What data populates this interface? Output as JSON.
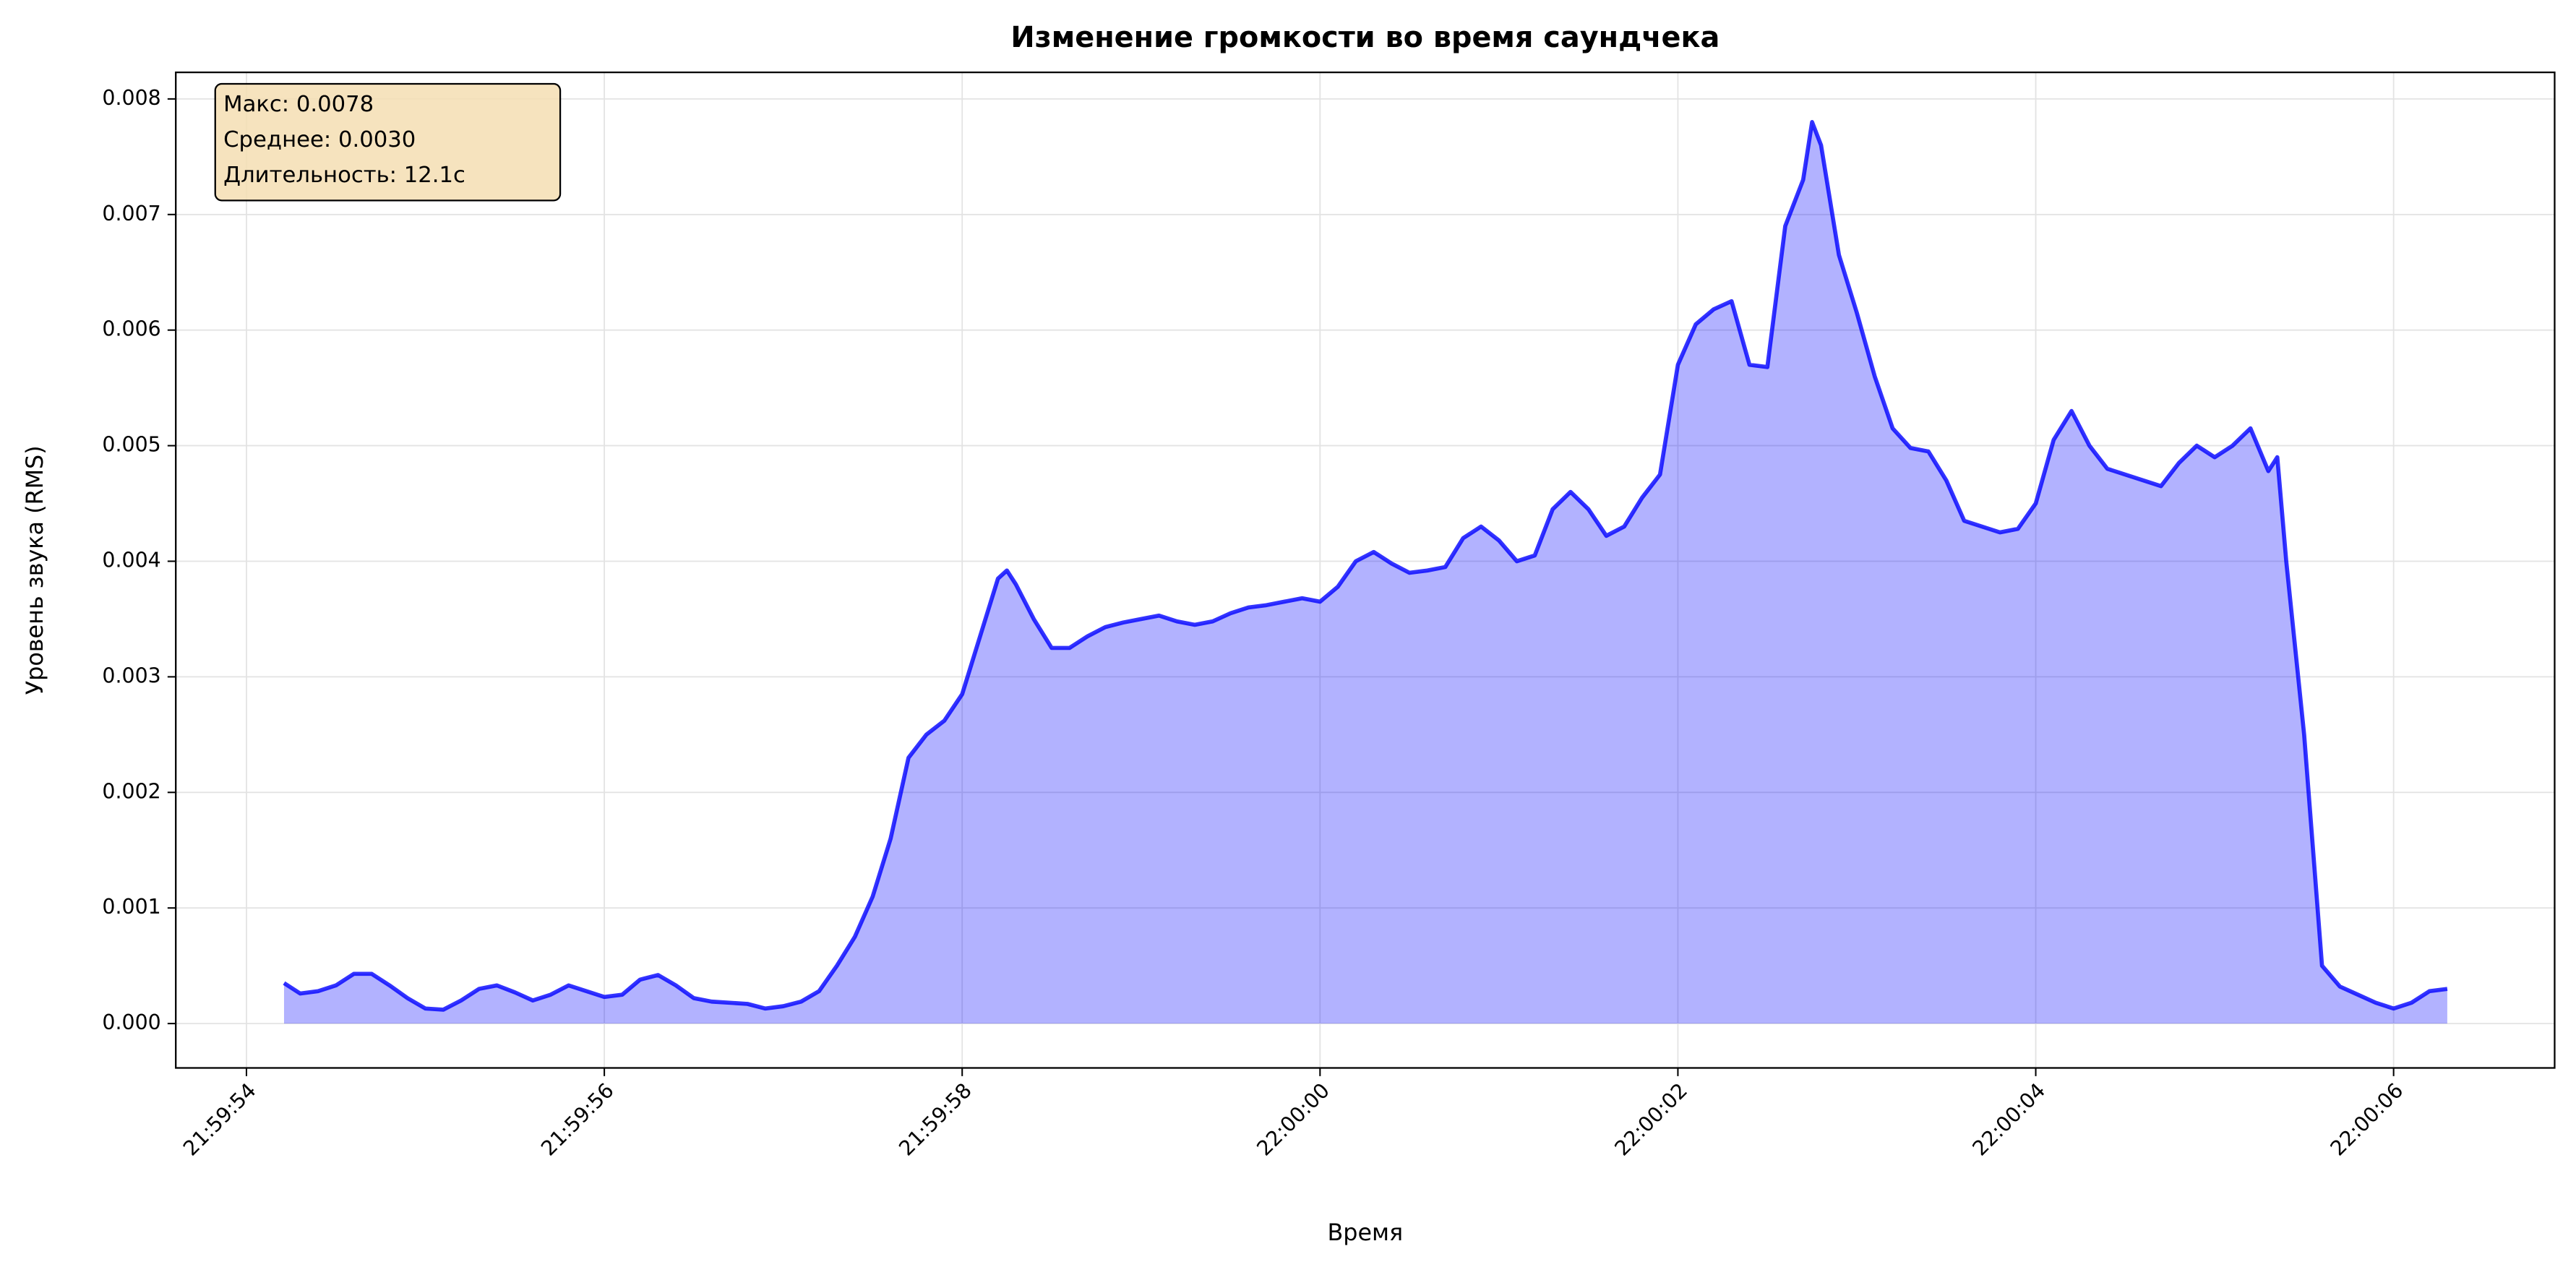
{
  "chart_data": {
    "type": "area_line",
    "title": "Изменение громкости во время саундчека",
    "x_label": "Время",
    "y_label": "Уровень звука (RMS)",
    "annotation": [
      "Макс: 0.0078",
      "Среднее: 0.0030",
      "Длительность: 12.1с"
    ],
    "grid": true,
    "series": [
      {
        "name": "RMS",
        "color": "#0000ff",
        "x": [
          79194.21,
          79194.3,
          79194.4,
          79194.5,
          79194.6,
          79194.7,
          79194.8,
          79194.9,
          79195.0,
          79195.1,
          79195.2,
          79195.3,
          79195.4,
          79195.5,
          79195.6,
          79195.7,
          79195.8,
          79195.9,
          79196.0,
          79196.1,
          79196.2,
          79196.3,
          79196.4,
          79196.5,
          79196.6,
          79196.7,
          79196.8,
          79196.9,
          79197.0,
          79197.1,
          79197.2,
          79197.3,
          79197.4,
          79197.5,
          79197.6,
          79197.7,
          79197.8,
          79197.9,
          79198.0,
          79198.1,
          79198.2,
          79198.25,
          79198.3,
          79198.4,
          79198.5,
          79198.6,
          79198.7,
          79198.8,
          79198.9,
          79199.0,
          79199.1,
          79199.2,
          79199.3,
          79199.4,
          79199.5,
          79199.6,
          79199.7,
          79199.8,
          79199.9,
          79200.0,
          79200.1,
          79200.2,
          79200.3,
          79200.4,
          79200.5,
          79200.6,
          79200.7,
          79200.8,
          79200.9,
          79201.0,
          79201.1,
          79201.2,
          79201.3,
          79201.4,
          79201.5,
          79201.6,
          79201.7,
          79201.8,
          79201.9,
          79202.0,
          79202.1,
          79202.2,
          79202.3,
          79202.4,
          79202.5,
          79202.6,
          79202.7,
          79202.75,
          79202.8,
          79202.9,
          79203.0,
          79203.1,
          79203.2,
          79203.3,
          79203.4,
          79203.5,
          79203.6,
          79203.7,
          79203.8,
          79203.9,
          79204.0,
          79204.1,
          79204.2,
          79204.3,
          79204.4,
          79204.5,
          79204.6,
          79204.7,
          79204.8,
          79204.9,
          79205.0,
          79205.1,
          79205.2,
          79205.3,
          79205.35,
          79205.4,
          79205.5,
          79205.6,
          79205.7,
          79205.8,
          79205.9,
          79206.0,
          79206.1,
          79206.2,
          79206.3
        ],
        "values": [
          0.00035,
          0.00026,
          0.00028,
          0.00033,
          0.00043,
          0.00043,
          0.00033,
          0.00022,
          0.00013,
          0.00012,
          0.0002,
          0.0003,
          0.00033,
          0.00027,
          0.0002,
          0.00025,
          0.00033,
          0.00028,
          0.00023,
          0.00025,
          0.00038,
          0.00042,
          0.00033,
          0.00022,
          0.00019,
          0.00018,
          0.00017,
          0.00013,
          0.00015,
          0.00019,
          0.00028,
          0.0005,
          0.00075,
          0.0011,
          0.0016,
          0.0023,
          0.0025,
          0.00262,
          0.00285,
          0.00335,
          0.00385,
          0.00392,
          0.0038,
          0.0035,
          0.00325,
          0.00325,
          0.00335,
          0.00343,
          0.00347,
          0.0035,
          0.00353,
          0.00348,
          0.00345,
          0.00348,
          0.00355,
          0.0036,
          0.00362,
          0.00365,
          0.00368,
          0.00365,
          0.00378,
          0.004,
          0.00408,
          0.00398,
          0.0039,
          0.00392,
          0.00395,
          0.0042,
          0.0043,
          0.00418,
          0.004,
          0.00405,
          0.00445,
          0.0046,
          0.00445,
          0.00422,
          0.0043,
          0.00455,
          0.00475,
          0.0057,
          0.00605,
          0.00618,
          0.00625,
          0.0057,
          0.00568,
          0.0069,
          0.0073,
          0.0078,
          0.0076,
          0.00665,
          0.00615,
          0.0056,
          0.00515,
          0.00498,
          0.00495,
          0.0047,
          0.00435,
          0.0043,
          0.00425,
          0.00428,
          0.0045,
          0.00505,
          0.0053,
          0.005,
          0.0048,
          0.00475,
          0.0047,
          0.00465,
          0.00485,
          0.005,
          0.0049,
          0.005,
          0.00515,
          0.00478,
          0.0049,
          0.004,
          0.0025,
          0.0005,
          0.00032,
          0.00025,
          0.00018,
          0.00013,
          0.00018,
          0.00028,
          0.0003
        ]
      }
    ],
    "xlim": [
      79193.605,
      79206.9
    ],
    "xticks": [
      {
        "value": 79194,
        "label": "21:59:54"
      },
      {
        "value": 79196,
        "label": "21:59:56"
      },
      {
        "value": 79198,
        "label": "21:59:58"
      },
      {
        "value": 79200,
        "label": "22:00:00"
      },
      {
        "value": 79202,
        "label": "22:00:02"
      },
      {
        "value": 79204,
        "label": "22:00:04"
      },
      {
        "value": 79206,
        "label": "22:00:06"
      }
    ],
    "ylim": [
      -0.000384,
      0.00823
    ],
    "yticks": [
      {
        "value": 0,
        "label": "0.000"
      },
      {
        "value": 0.001,
        "label": "0.001"
      },
      {
        "value": 0.002,
        "label": "0.002"
      },
      {
        "value": 0.003,
        "label": "0.003"
      },
      {
        "value": 0.004,
        "label": "0.004"
      },
      {
        "value": 0.005,
        "label": "0.005"
      },
      {
        "value": 0.006,
        "label": "0.006"
      },
      {
        "value": 0.007,
        "label": "0.007"
      },
      {
        "value": 0.008,
        "label": "0.008"
      }
    ]
  }
}
